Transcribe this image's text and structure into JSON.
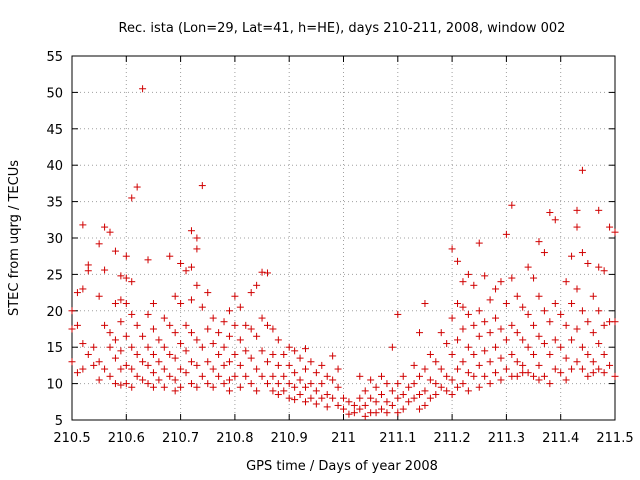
{
  "chart_data": {
    "type": "scatter",
    "title": "Rec. ista (Lon=29, Lat=41, h=HE), days 210-211, 2008, window 002",
    "xlabel": "GPS time / Days of year 2008",
    "ylabel": "STEC from uqrg / TECUs",
    "xlim": [
      210.5,
      211.5
    ],
    "ylim": [
      5,
      55
    ],
    "xticks": [
      210.5,
      210.6,
      210.7,
      210.8,
      210.9,
      211.0,
      211.1,
      211.2,
      211.3,
      211.4,
      211.5
    ],
    "xtick_labels": [
      "210.5",
      "210.6",
      "210.7",
      "210.8",
      "210.9",
      "211",
      "211.1",
      "211.2",
      "211.3",
      "211.4",
      "211.5"
    ],
    "yticks": [
      5,
      10,
      15,
      20,
      25,
      30,
      35,
      40,
      45,
      50,
      55
    ],
    "ytick_labels": [
      "5",
      "10",
      "15",
      "20",
      "25",
      "30",
      "35",
      "40",
      "45",
      "50",
      "55"
    ],
    "grid": true,
    "marker": "+",
    "color": "#d00000",
    "points": [
      [
        210.5,
        20.0
      ],
      [
        210.5,
        17.5
      ],
      [
        210.5,
        13.0
      ],
      [
        210.51,
        22.5
      ],
      [
        210.51,
        18.0
      ],
      [
        210.51,
        11.5
      ],
      [
        210.52,
        31.8
      ],
      [
        210.52,
        15.5
      ],
      [
        210.52,
        12.0
      ],
      [
        210.52,
        23.0
      ],
      [
        210.53,
        26.3
      ],
      [
        210.53,
        25.5
      ],
      [
        210.53,
        14.0
      ],
      [
        210.54,
        15.0
      ],
      [
        210.54,
        12.5
      ],
      [
        210.55,
        29.2
      ],
      [
        210.55,
        22.0
      ],
      [
        210.55,
        13.0
      ],
      [
        210.55,
        10.5
      ],
      [
        210.56,
        31.5
      ],
      [
        210.56,
        25.6
      ],
      [
        210.56,
        18.0
      ],
      [
        210.56,
        12.0
      ],
      [
        210.57,
        30.8
      ],
      [
        210.57,
        17.0
      ],
      [
        210.57,
        15.0
      ],
      [
        210.57,
        11.0
      ],
      [
        210.58,
        28.2
      ],
      [
        210.58,
        21.0
      ],
      [
        210.58,
        16.0
      ],
      [
        210.58,
        13.5
      ],
      [
        210.58,
        10.0
      ],
      [
        210.59,
        24.8
      ],
      [
        210.59,
        21.5
      ],
      [
        210.59,
        18.5
      ],
      [
        210.59,
        14.5
      ],
      [
        210.59,
        12.0
      ],
      [
        210.59,
        9.8
      ],
      [
        210.6,
        27.5
      ],
      [
        210.6,
        24.5
      ],
      [
        210.6,
        21.0
      ],
      [
        210.6,
        16.5
      ],
      [
        210.6,
        12.5
      ],
      [
        210.6,
        10.0
      ],
      [
        210.61,
        35.5
      ],
      [
        210.61,
        24.0
      ],
      [
        210.61,
        19.5
      ],
      [
        210.61,
        15.0
      ],
      [
        210.61,
        12.0
      ],
      [
        210.61,
        9.5
      ],
      [
        210.62,
        37.0
      ],
      [
        210.62,
        18.0
      ],
      [
        210.62,
        14.0
      ],
      [
        210.62,
        11.0
      ],
      [
        210.63,
        50.5
      ],
      [
        210.63,
        16.5
      ],
      [
        210.63,
        13.0
      ],
      [
        210.63,
        10.5
      ],
      [
        210.64,
        27.0
      ],
      [
        210.64,
        19.5
      ],
      [
        210.64,
        15.0
      ],
      [
        210.64,
        12.5
      ],
      [
        210.64,
        10.0
      ],
      [
        210.65,
        21.0
      ],
      [
        210.65,
        17.5
      ],
      [
        210.65,
        14.0
      ],
      [
        210.65,
        11.5
      ],
      [
        210.65,
        9.5
      ],
      [
        210.66,
        16.0
      ],
      [
        210.66,
        13.0
      ],
      [
        210.66,
        10.5
      ],
      [
        210.67,
        19.0
      ],
      [
        210.67,
        15.0
      ],
      [
        210.67,
        12.0
      ],
      [
        210.67,
        9.5
      ],
      [
        210.68,
        27.5
      ],
      [
        210.68,
        18.0
      ],
      [
        210.68,
        14.0
      ],
      [
        210.68,
        11.0
      ],
      [
        210.69,
        22.0
      ],
      [
        210.69,
        17.0
      ],
      [
        210.69,
        13.5
      ],
      [
        210.69,
        10.5
      ],
      [
        210.69,
        9.0
      ],
      [
        210.7,
        26.5
      ],
      [
        210.7,
        21.0
      ],
      [
        210.7,
        15.5
      ],
      [
        210.7,
        12.0
      ],
      [
        210.7,
        9.5
      ],
      [
        210.71,
        25.5
      ],
      [
        210.71,
        18.0
      ],
      [
        210.71,
        14.5
      ],
      [
        210.71,
        11.5
      ],
      [
        210.72,
        31.0
      ],
      [
        210.72,
        26.0
      ],
      [
        210.72,
        21.5
      ],
      [
        210.72,
        17.0
      ],
      [
        210.72,
        13.0
      ],
      [
        210.72,
        10.0
      ],
      [
        210.73,
        30.0
      ],
      [
        210.73,
        28.5
      ],
      [
        210.73,
        23.5
      ],
      [
        210.73,
        16.0
      ],
      [
        210.73,
        12.5
      ],
      [
        210.73,
        9.5
      ],
      [
        210.74,
        37.2
      ],
      [
        210.74,
        20.5
      ],
      [
        210.74,
        15.0
      ],
      [
        210.74,
        11.0
      ],
      [
        210.75,
        22.5
      ],
      [
        210.75,
        17.5
      ],
      [
        210.75,
        13.0
      ],
      [
        210.75,
        10.0
      ],
      [
        210.76,
        19.0
      ],
      [
        210.76,
        15.5
      ],
      [
        210.76,
        12.0
      ],
      [
        210.76,
        9.5
      ],
      [
        210.77,
        17.0
      ],
      [
        210.77,
        14.0
      ],
      [
        210.77,
        11.0
      ],
      [
        210.78,
        18.5
      ],
      [
        210.78,
        15.0
      ],
      [
        210.78,
        12.5
      ],
      [
        210.78,
        10.0
      ],
      [
        210.79,
        20.0
      ],
      [
        210.79,
        16.5
      ],
      [
        210.79,
        13.0
      ],
      [
        210.79,
        10.5
      ],
      [
        210.79,
        9.0
      ],
      [
        210.8,
        22.0
      ],
      [
        210.8,
        18.0
      ],
      [
        210.8,
        14.0
      ],
      [
        210.8,
        11.0
      ],
      [
        210.81,
        20.5
      ],
      [
        210.81,
        16.0
      ],
      [
        210.81,
        12.5
      ],
      [
        210.81,
        9.5
      ],
      [
        210.82,
        18.0
      ],
      [
        210.82,
        14.5
      ],
      [
        210.82,
        11.0
      ],
      [
        210.83,
        22.5
      ],
      [
        210.83,
        17.5
      ],
      [
        210.83,
        13.5
      ],
      [
        210.83,
        10.0
      ],
      [
        210.84,
        23.5
      ],
      [
        210.84,
        16.5
      ],
      [
        210.84,
        12.0
      ],
      [
        210.84,
        9.0
      ],
      [
        210.85,
        25.3
      ],
      [
        210.85,
        19.0
      ],
      [
        210.85,
        14.5
      ],
      [
        210.85,
        11.0
      ],
      [
        210.86,
        25.2
      ],
      [
        210.86,
        18.0
      ],
      [
        210.86,
        13.0
      ],
      [
        210.86,
        10.0
      ],
      [
        210.87,
        17.5
      ],
      [
        210.87,
        14.0
      ],
      [
        210.87,
        11.0
      ],
      [
        210.87,
        9.0
      ],
      [
        210.88,
        16.0
      ],
      [
        210.88,
        12.5
      ],
      [
        210.88,
        10.0
      ],
      [
        210.88,
        8.5
      ],
      [
        210.89,
        14.0
      ],
      [
        210.89,
        11.0
      ],
      [
        210.89,
        9.0
      ],
      [
        210.9,
        15.0
      ],
      [
        210.9,
        12.5
      ],
      [
        210.9,
        10.0
      ],
      [
        210.9,
        8.0
      ],
      [
        210.91,
        14.5
      ],
      [
        210.91,
        11.5
      ],
      [
        210.91,
        9.5
      ],
      [
        210.91,
        7.8
      ],
      [
        210.92,
        13.5
      ],
      [
        210.92,
        10.5
      ],
      [
        210.92,
        8.5
      ],
      [
        210.93,
        14.8
      ],
      [
        210.93,
        12.0
      ],
      [
        210.93,
        9.5
      ],
      [
        210.93,
        7.5
      ],
      [
        210.94,
        13.0
      ],
      [
        210.94,
        10.0
      ],
      [
        210.94,
        8.0
      ],
      [
        210.95,
        11.5
      ],
      [
        210.95,
        9.0
      ],
      [
        210.95,
        7.2
      ],
      [
        210.96,
        12.5
      ],
      [
        210.96,
        10.0
      ],
      [
        210.96,
        8.0
      ],
      [
        210.97,
        11.0
      ],
      [
        210.97,
        8.5
      ],
      [
        210.97,
        6.8
      ],
      [
        210.98,
        13.8
      ],
      [
        210.98,
        10.5
      ],
      [
        210.98,
        8.0
      ],
      [
        210.99,
        12.0
      ],
      [
        210.99,
        9.5
      ],
      [
        210.99,
        7.0
      ],
      [
        211.0,
        8.0
      ],
      [
        211.0,
        6.5
      ],
      [
        211.01,
        7.5
      ],
      [
        211.01,
        5.8
      ],
      [
        211.02,
        7.0
      ],
      [
        211.02,
        6.0
      ],
      [
        211.03,
        11.0
      ],
      [
        211.03,
        8.0
      ],
      [
        211.03,
        6.5
      ],
      [
        211.04,
        9.0
      ],
      [
        211.04,
        7.0
      ],
      [
        211.04,
        5.5
      ],
      [
        211.05,
        10.5
      ],
      [
        211.05,
        8.0
      ],
      [
        211.05,
        6.0
      ],
      [
        211.06,
        9.5
      ],
      [
        211.06,
        7.5
      ],
      [
        211.06,
        6.0
      ],
      [
        211.07,
        11.0
      ],
      [
        211.07,
        8.5
      ],
      [
        211.07,
        6.5
      ],
      [
        211.08,
        10.0
      ],
      [
        211.08,
        7.5
      ],
      [
        211.08,
        6.0
      ],
      [
        211.09,
        15.0
      ],
      [
        211.09,
        9.0
      ],
      [
        211.09,
        7.0
      ],
      [
        211.1,
        19.5
      ],
      [
        211.1,
        10.0
      ],
      [
        211.1,
        8.0
      ],
      [
        211.1,
        6.0
      ],
      [
        211.11,
        11.0
      ],
      [
        211.11,
        8.5
      ],
      [
        211.11,
        6.5
      ],
      [
        211.12,
        9.5
      ],
      [
        211.12,
        7.5
      ],
      [
        211.13,
        12.5
      ],
      [
        211.13,
        10.0
      ],
      [
        211.13,
        8.0
      ],
      [
        211.14,
        17.0
      ],
      [
        211.14,
        11.0
      ],
      [
        211.14,
        8.5
      ],
      [
        211.14,
        6.5
      ],
      [
        211.15,
        21.0
      ],
      [
        211.15,
        12.0
      ],
      [
        211.15,
        9.0
      ],
      [
        211.15,
        7.0
      ],
      [
        211.16,
        14.0
      ],
      [
        211.16,
        10.5
      ],
      [
        211.16,
        8.0
      ],
      [
        211.17,
        13.0
      ],
      [
        211.17,
        10.0
      ],
      [
        211.17,
        8.5
      ],
      [
        211.18,
        17.0
      ],
      [
        211.18,
        12.0
      ],
      [
        211.18,
        9.5
      ],
      [
        211.19,
        15.5
      ],
      [
        211.19,
        11.0
      ],
      [
        211.19,
        9.0
      ],
      [
        211.2,
        28.5
      ],
      [
        211.2,
        19.0
      ],
      [
        211.2,
        14.0
      ],
      [
        211.2,
        10.5
      ],
      [
        211.2,
        8.5
      ],
      [
        211.21,
        26.8
      ],
      [
        211.21,
        21.0
      ],
      [
        211.21,
        16.0
      ],
      [
        211.21,
        12.0
      ],
      [
        211.21,
        9.5
      ],
      [
        211.22,
        24.0
      ],
      [
        211.22,
        20.5
      ],
      [
        211.22,
        17.5
      ],
      [
        211.22,
        13.0
      ],
      [
        211.22,
        10.0
      ],
      [
        211.23,
        25.0
      ],
      [
        211.23,
        19.5
      ],
      [
        211.23,
        15.0
      ],
      [
        211.23,
        11.5
      ],
      [
        211.23,
        9.0
      ],
      [
        211.24,
        23.5
      ],
      [
        211.24,
        18.0
      ],
      [
        211.24,
        14.0
      ],
      [
        211.24,
        11.0
      ],
      [
        211.25,
        29.3
      ],
      [
        211.25,
        20.0
      ],
      [
        211.25,
        16.5
      ],
      [
        211.25,
        12.5
      ],
      [
        211.25,
        9.5
      ],
      [
        211.26,
        24.8
      ],
      [
        211.26,
        18.5
      ],
      [
        211.26,
        14.5
      ],
      [
        211.26,
        11.0
      ],
      [
        211.27,
        21.5
      ],
      [
        211.27,
        17.0
      ],
      [
        211.27,
        13.0
      ],
      [
        211.27,
        10.0
      ],
      [
        211.28,
        23.0
      ],
      [
        211.28,
        19.0
      ],
      [
        211.28,
        15.0
      ],
      [
        211.28,
        11.5
      ],
      [
        211.29,
        24.0
      ],
      [
        211.29,
        17.5
      ],
      [
        211.29,
        13.5
      ],
      [
        211.29,
        10.5
      ],
      [
        211.3,
        30.5
      ],
      [
        211.3,
        21.0
      ],
      [
        211.3,
        16.0
      ],
      [
        211.3,
        12.0
      ],
      [
        211.31,
        34.5
      ],
      [
        211.31,
        24.5
      ],
      [
        211.31,
        18.0
      ],
      [
        211.31,
        14.0
      ],
      [
        211.31,
        11.0
      ],
      [
        211.32,
        22.0
      ],
      [
        211.32,
        17.0
      ],
      [
        211.32,
        13.0
      ],
      [
        211.32,
        11.0
      ],
      [
        211.33,
        20.5
      ],
      [
        211.33,
        16.0
      ],
      [
        211.33,
        12.5
      ],
      [
        211.33,
        11.5
      ],
      [
        211.34,
        26.0
      ],
      [
        211.34,
        19.5
      ],
      [
        211.34,
        15.0
      ],
      [
        211.34,
        11.5
      ],
      [
        211.35,
        24.5
      ],
      [
        211.35,
        18.0
      ],
      [
        211.35,
        14.0
      ],
      [
        211.35,
        11.0
      ],
      [
        211.36,
        29.5
      ],
      [
        211.36,
        22.0
      ],
      [
        211.36,
        16.5
      ],
      [
        211.36,
        12.5
      ],
      [
        211.36,
        10.5
      ],
      [
        211.37,
        28.0
      ],
      [
        211.37,
        20.0
      ],
      [
        211.37,
        15.5
      ],
      [
        211.37,
        11.0
      ],
      [
        211.38,
        33.5
      ],
      [
        211.38,
        18.5
      ],
      [
        211.38,
        14.0
      ],
      [
        211.38,
        10.0
      ],
      [
        211.39,
        32.5
      ],
      [
        211.39,
        21.0
      ],
      [
        211.39,
        16.0
      ],
      [
        211.39,
        12.0
      ],
      [
        211.4,
        19.5
      ],
      [
        211.4,
        15.0
      ],
      [
        211.4,
        11.5
      ],
      [
        211.41,
        24.0
      ],
      [
        211.41,
        18.0
      ],
      [
        211.41,
        13.5
      ],
      [
        211.41,
        10.5
      ],
      [
        211.42,
        27.5
      ],
      [
        211.42,
        21.0
      ],
      [
        211.42,
        16.0
      ],
      [
        211.42,
        12.0
      ],
      [
        211.43,
        33.8
      ],
      [
        211.43,
        31.5
      ],
      [
        211.43,
        23.0
      ],
      [
        211.43,
        17.5
      ],
      [
        211.43,
        13.0
      ],
      [
        211.44,
        39.3
      ],
      [
        211.44,
        28.0
      ],
      [
        211.44,
        20.0
      ],
      [
        211.44,
        15.0
      ],
      [
        211.44,
        12.0
      ],
      [
        211.45,
        26.5
      ],
      [
        211.45,
        18.5
      ],
      [
        211.45,
        14.0
      ],
      [
        211.45,
        11.0
      ],
      [
        211.46,
        22.0
      ],
      [
        211.46,
        17.0
      ],
      [
        211.46,
        13.0
      ],
      [
        211.46,
        11.5
      ],
      [
        211.47,
        33.8
      ],
      [
        211.47,
        26.0
      ],
      [
        211.47,
        20.0
      ],
      [
        211.47,
        15.5
      ],
      [
        211.47,
        12.0
      ],
      [
        211.48,
        25.5
      ],
      [
        211.48,
        18.0
      ],
      [
        211.48,
        14.0
      ],
      [
        211.48,
        11.5
      ],
      [
        211.49,
        31.5
      ],
      [
        211.49,
        18.5
      ],
      [
        211.49,
        12.5
      ],
      [
        211.5,
        30.8
      ],
      [
        211.5,
        18.5
      ],
      [
        211.5,
        11.0
      ]
    ]
  }
}
